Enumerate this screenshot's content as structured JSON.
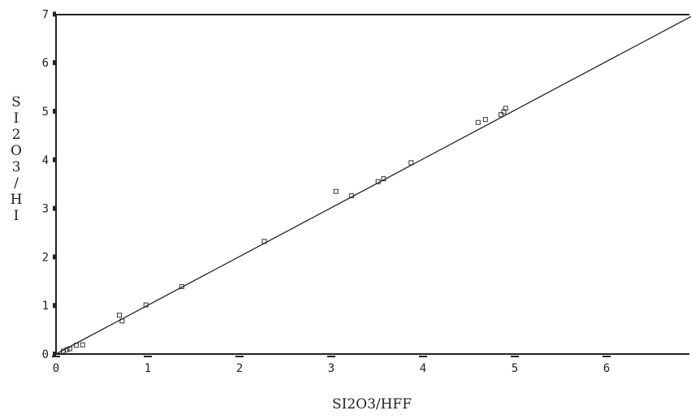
{
  "chart_data": {
    "type": "scatter",
    "title": "",
    "xlabel": "SI2O3/HFF",
    "ylabel": "SI2O3/HI",
    "xlim": [
      0,
      7
    ],
    "ylim": [
      0,
      7
    ],
    "x_ticks": [
      0,
      1,
      2,
      3,
      4,
      5,
      6
    ],
    "y_ticks": [
      0,
      1,
      2,
      3,
      4,
      5,
      6,
      7
    ],
    "grid": false,
    "legend": "none",
    "series": [
      {
        "type": "scatter",
        "marker": "square",
        "points": [
          [
            0.08,
            0.06
          ],
          [
            0.12,
            0.09
          ],
          [
            0.15,
            0.11
          ],
          [
            0.22,
            0.18
          ],
          [
            0.29,
            0.19
          ],
          [
            0.69,
            0.8
          ],
          [
            0.72,
            0.68
          ],
          [
            0.98,
            1.01
          ],
          [
            1.37,
            1.39
          ],
          [
            2.27,
            2.32
          ],
          [
            3.05,
            3.35
          ],
          [
            3.22,
            3.26
          ],
          [
            3.51,
            3.55
          ],
          [
            3.57,
            3.61
          ],
          [
            3.87,
            3.94
          ],
          [
            4.6,
            4.77
          ],
          [
            4.68,
            4.83
          ],
          [
            4.85,
            4.93
          ],
          [
            4.88,
            4.99
          ],
          [
            4.9,
            5.06
          ]
        ]
      },
      {
        "type": "line",
        "points": [
          [
            0,
            0
          ],
          [
            6.95,
            6.98
          ]
        ]
      }
    ]
  }
}
